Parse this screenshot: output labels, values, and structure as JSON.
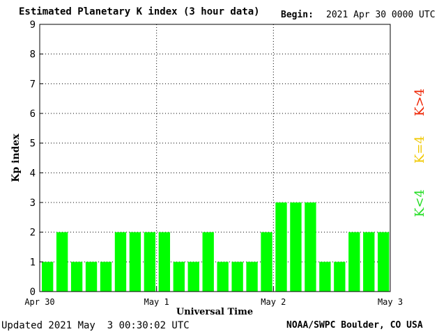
{
  "header": {
    "title": "Estimated Planetary K index (3 hour data)",
    "begin_label": "Begin:",
    "begin_value": "2021 Apr 30 0000 UTC"
  },
  "footer": {
    "updated": "Updated 2021 May  3 00:30:02 UTC",
    "credit": "NOAA/SWPC Boulder, CO USA"
  },
  "legend": [
    {
      "label": "K<4",
      "color": "#22dd22"
    },
    {
      "label": "K=4",
      "color": "#f0c800"
    },
    {
      "label": "K>4",
      "color": "#ee2200"
    }
  ],
  "chart_data": {
    "type": "bar",
    "title": "Estimated Planetary K index (3 hour data)",
    "xlabel": "Universal Time",
    "ylabel": "Kp index",
    "ylim": [
      0,
      9
    ],
    "yticks": [
      "0",
      "1",
      "2",
      "3",
      "4",
      "5",
      "6",
      "7",
      "8",
      "9"
    ],
    "x_tick_labels": [
      "Apr 30",
      "May 1",
      "May 2",
      "May 3"
    ],
    "bar_color": "#00ff00",
    "grid": "dotted vertical at day boundaries, dotted horizontal at integer Kp",
    "series": [
      {
        "values": [
          1,
          2,
          1,
          1,
          1,
          2,
          2,
          2,
          2,
          1,
          1,
          2,
          1,
          1,
          1,
          2,
          3,
          3,
          3,
          1,
          1,
          2,
          2,
          2
        ]
      }
    ]
  }
}
